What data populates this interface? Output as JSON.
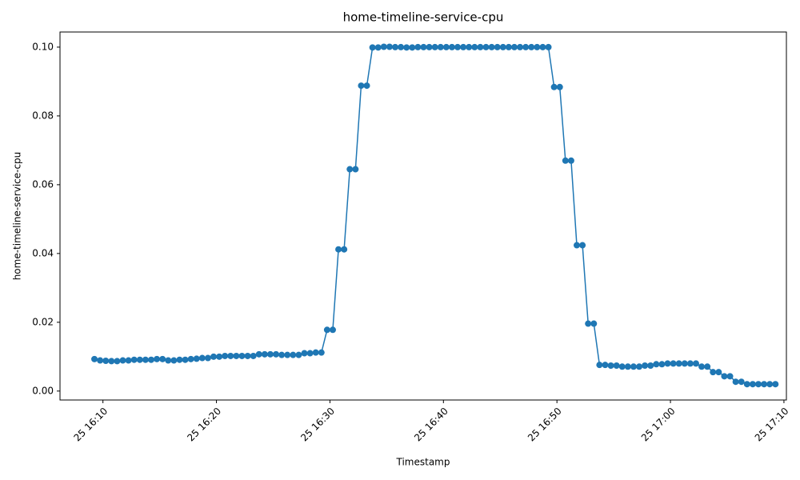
{
  "chart_data": {
    "type": "line",
    "title": "home-timeline-service-cpu",
    "x_label": "Timestamp",
    "y_label": "home-timeline-service-cpu",
    "x": [
      "25 16:09:15",
      "25 16:09:45",
      "25 16:10:15",
      "25 16:10:45",
      "25 16:11:15",
      "25 16:11:45",
      "25 16:12:15",
      "25 16:12:45",
      "25 16:13:15",
      "25 16:13:45",
      "25 16:14:15",
      "25 16:14:45",
      "25 16:15:15",
      "25 16:15:45",
      "25 16:16:15",
      "25 16:16:45",
      "25 16:17:15",
      "25 16:17:45",
      "25 16:18:15",
      "25 16:18:45",
      "25 16:19:15",
      "25 16:19:45",
      "25 16:20:15",
      "25 16:20:45",
      "25 16:21:15",
      "25 16:21:45",
      "25 16:22:15",
      "25 16:22:45",
      "25 16:23:15",
      "25 16:23:45",
      "25 16:24:15",
      "25 16:24:45",
      "25 16:25:15",
      "25 16:25:45",
      "25 16:26:15",
      "25 16:26:45",
      "25 16:27:15",
      "25 16:27:45",
      "25 16:28:15",
      "25 16:28:45",
      "25 16:29:15",
      "25 16:29:45",
      "25 16:30:15",
      "25 16:30:45",
      "25 16:31:15",
      "25 16:31:45",
      "25 16:32:15",
      "25 16:32:45",
      "25 16:33:15",
      "25 16:33:45",
      "25 16:34:15",
      "25 16:34:45",
      "25 16:35:15",
      "25 16:35:45",
      "25 16:36:15",
      "25 16:36:45",
      "25 16:37:15",
      "25 16:37:45",
      "25 16:38:15",
      "25 16:38:45",
      "25 16:39:15",
      "25 16:39:45",
      "25 16:40:15",
      "25 16:40:45",
      "25 16:41:15",
      "25 16:41:45",
      "25 16:42:15",
      "25 16:42:45",
      "25 16:43:15",
      "25 16:43:45",
      "25 16:44:15",
      "25 16:44:45",
      "25 16:45:15",
      "25 16:45:45",
      "25 16:46:15",
      "25 16:46:45",
      "25 16:47:15",
      "25 16:47:45",
      "25 16:48:15",
      "25 16:48:45",
      "25 16:49:15",
      "25 16:49:45",
      "25 16:50:15",
      "25 16:50:45",
      "25 16:51:15",
      "25 16:51:45",
      "25 16:52:15",
      "25 16:52:45",
      "25 16:53:15",
      "25 16:53:45",
      "25 16:54:15",
      "25 16:54:45",
      "25 16:55:15",
      "25 16:55:45",
      "25 16:56:15",
      "25 16:56:45",
      "25 16:57:15",
      "25 16:57:45",
      "25 16:58:15",
      "25 16:58:45",
      "25 16:59:15",
      "25 16:59:45",
      "25 17:00:15",
      "25 17:00:45",
      "25 17:01:15",
      "25 17:01:45",
      "25 17:02:15",
      "25 17:02:45",
      "25 17:03:15",
      "25 17:03:45",
      "25 17:04:15",
      "25 17:04:45",
      "25 17:05:15",
      "25 17:05:45",
      "25 17:06:15",
      "25 17:06:45",
      "25 17:07:15",
      "25 17:07:45",
      "25 17:08:15",
      "25 17:08:45",
      "25 17:09:15"
    ],
    "values": [
      0.0093,
      0.0089,
      0.0088,
      0.0087,
      0.0087,
      0.0089,
      0.0089,
      0.0091,
      0.0091,
      0.0091,
      0.0091,
      0.0093,
      0.0093,
      0.0089,
      0.0089,
      0.0091,
      0.0091,
      0.0093,
      0.0094,
      0.0096,
      0.0096,
      0.01,
      0.01,
      0.0102,
      0.0102,
      0.0102,
      0.0102,
      0.0102,
      0.0102,
      0.0107,
      0.0107,
      0.0107,
      0.0107,
      0.0105,
      0.0105,
      0.0105,
      0.0105,
      0.011,
      0.011,
      0.0112,
      0.0112,
      0.0178,
      0.0178,
      0.0412,
      0.0412,
      0.0645,
      0.0645,
      0.0888,
      0.0888,
      0.0999,
      0.0999,
      0.1001,
      0.1001,
      0.1,
      0.1,
      0.0999,
      0.0999,
      0.1,
      0.1,
      0.1,
      0.1,
      0.1,
      0.1,
      0.1,
      0.1,
      0.1,
      0.1,
      0.1,
      0.1,
      0.1,
      0.1,
      0.1,
      0.1,
      0.1,
      0.1,
      0.1,
      0.1,
      0.1,
      0.1,
      0.1,
      0.1,
      0.0884,
      0.0884,
      0.067,
      0.067,
      0.0424,
      0.0424,
      0.0196,
      0.0196,
      0.0076,
      0.0076,
      0.0074,
      0.0074,
      0.0071,
      0.0071,
      0.0071,
      0.0071,
      0.0074,
      0.0074,
      0.0078,
      0.0078,
      0.008,
      0.008,
      0.008,
      0.008,
      0.008,
      0.008,
      0.0071,
      0.0071,
      0.0055,
      0.0055,
      0.0043,
      0.0043,
      0.0027,
      0.0027,
      0.002,
      0.002,
      0.002,
      0.002,
      0.002,
      0.002
    ],
    "color": "#1f77b4",
    "xlim": [
      "25 16:06:13",
      "25 17:10:13"
    ],
    "xticks": [
      "25 16:10",
      "25 16:20",
      "25 16:30",
      "25 16:40",
      "25 16:50",
      "25 17:00",
      "25 17:10"
    ],
    "ylim": [
      -0.0026,
      0.1044
    ],
    "yticks": [
      {
        "value": 0,
        "label": "0.00"
      },
      {
        "value": 0.02,
        "label": "0.02"
      },
      {
        "value": 0.04,
        "label": "0.04"
      },
      {
        "value": 0.06,
        "label": "0.06"
      },
      {
        "value": 0.08,
        "label": "0.08"
      },
      {
        "value": 0.1,
        "label": "0.10"
      }
    ],
    "grid": false
  }
}
